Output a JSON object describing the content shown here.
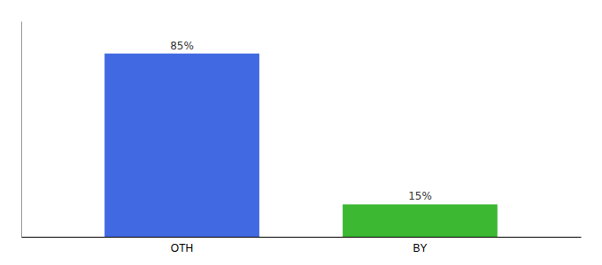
{
  "chart_data": {
    "type": "bar",
    "categories": [
      "OTH",
      "BY"
    ],
    "values": [
      85,
      15
    ],
    "value_labels": [
      "85%",
      "15%"
    ],
    "colors": [
      "#4169E1",
      "#3CB832"
    ],
    "ylim": [
      0,
      100
    ],
    "data_labels": true,
    "tick_labels": "x"
  }
}
